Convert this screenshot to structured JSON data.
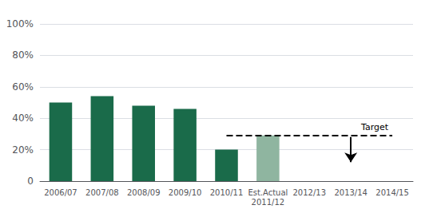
{
  "chart_data": {
    "type": "bar",
    "categories": [
      "2006/07",
      "2007/08",
      "2008/09",
      "2009/10",
      "2010/11",
      "Est.Actual\n2011/12",
      "2012/13",
      "2013/14",
      "2014/15"
    ],
    "values": [
      50,
      54,
      48,
      46,
      20,
      29,
      null,
      null,
      null
    ],
    "colors": [
      "#1a6b4a",
      "#1a6b4a",
      "#1a6b4a",
      "#1a6b4a",
      "#1a6b4a",
      "#8fb5a0",
      null,
      null,
      null
    ],
    "ylim": [
      0,
      100
    ],
    "yticks": [
      0,
      {
        "value": 20,
        "label": "20%"
      },
      {
        "value": 40,
        "label": "40%"
      },
      {
        "value": 60,
        "label": "60%"
      },
      {
        "value": 80,
        "label": "80%"
      },
      {
        "value": 100,
        "label": "100%"
      }
    ],
    "grid": true,
    "annotations": [
      {
        "type": "line",
        "label": "Target",
        "y": 29,
        "x_from": "2010/11",
        "x_to": "2014/15",
        "line_style": "dashed",
        "color": "#000000"
      },
      {
        "type": "arrow",
        "x": "2013/14",
        "y_from": 28,
        "y_to": 12,
        "color": "#000000"
      }
    ]
  }
}
